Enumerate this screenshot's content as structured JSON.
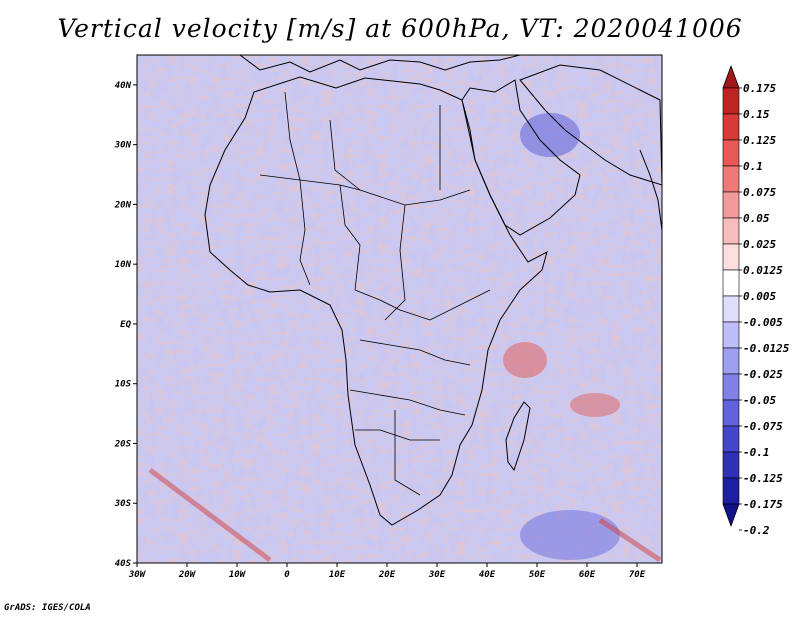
{
  "chart_data": {
    "type": "heatmap",
    "title": "Vertical velocity [m/s] at 600hPa, VT: 2020041006",
    "variable": "Vertical velocity",
    "units": "m/s",
    "level": "600hPa",
    "valid_time": "2020041006",
    "x_axis": {
      "ticks": [
        -30,
        -20,
        -10,
        0,
        10,
        20,
        30,
        40,
        50,
        60,
        70
      ],
      "tick_labels": [
        "30W",
        "20W",
        "10W",
        "0",
        "10E",
        "20E",
        "30E",
        "40E",
        "50E",
        "60E",
        "70E"
      ],
      "range": [
        -30,
        75
      ]
    },
    "y_axis": {
      "ticks": [
        40,
        30,
        20,
        10,
        0,
        -10,
        -20,
        -30,
        -40
      ],
      "tick_labels": [
        "40N",
        "30N",
        "20N",
        "10N",
        "EQ",
        "10S",
        "20S",
        "30S",
        "40S"
      ],
      "range": [
        -40,
        45
      ]
    },
    "colorbar": {
      "labels": [
        "0.175",
        "0.15",
        "0.125",
        "0.1",
        "0.075",
        "0.05",
        "0.025",
        "0.0125",
        "0.005",
        "-0.005",
        "-0.0125",
        "-0.025",
        "-0.05",
        "-0.075",
        "-0.1",
        "-0.125",
        "-0.175",
        "-0.2"
      ],
      "colors": [
        "#a01818",
        "#bf2424",
        "#d83a3a",
        "#e85858",
        "#ef7878",
        "#f49a9a",
        "#f8bcbc",
        "#fcdede",
        "#ffffff",
        "#dedefc",
        "#bebef8",
        "#9e9ef2",
        "#8080e8",
        "#6262dc",
        "#4646cc",
        "#3030b8",
        "#1e1ea2",
        "#12128a"
      ]
    }
  },
  "footer": "GrADS: IGES/COLA"
}
